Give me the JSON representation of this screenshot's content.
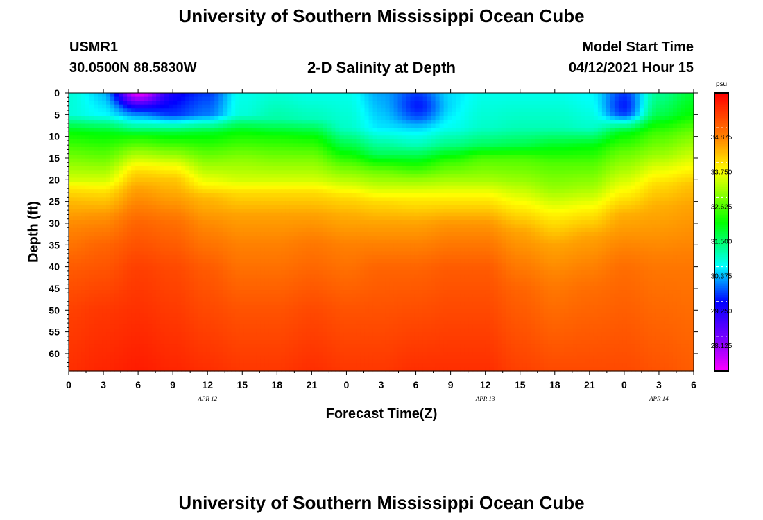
{
  "title": "University of Southern Mississippi Ocean Cube",
  "footer_title": "University of Southern Mississippi Ocean Cube",
  "station": {
    "id": "USMR1",
    "coords": "30.0500N  88.5830W"
  },
  "model": {
    "label": "Model Start Time",
    "value": "04/12/2021 Hour 15"
  },
  "chart_data": {
    "type": "heatmap",
    "title": "2-D Salinity at Depth",
    "xlabel": "Forecast Time(Z)",
    "ylabel": "Depth (ft)",
    "units": "psu",
    "x_tick_labels": [
      "0",
      "3",
      "6",
      "9",
      "12",
      "15",
      "18",
      "21",
      "0",
      "3",
      "6",
      "9",
      "12",
      "15",
      "18",
      "21",
      "0",
      "3",
      "6"
    ],
    "forecast_hours": [
      0,
      3,
      6,
      9,
      12,
      15,
      18,
      21,
      24,
      27,
      30,
      33,
      36,
      39,
      42,
      45,
      48,
      51,
      54
    ],
    "date_labels": [
      {
        "label": "APR 12",
        "hour": 12
      },
      {
        "label": "APR 13",
        "hour": 36
      },
      {
        "label": "APR 14",
        "hour": 51
      }
    ],
    "y_tick_labels": [
      "0",
      "5",
      "10",
      "15",
      "20",
      "25",
      "30",
      "35",
      "40",
      "45",
      "50",
      "55",
      "60"
    ],
    "depths": [
      0,
      5,
      10,
      15,
      20,
      25,
      30,
      35,
      40,
      45,
      50,
      55,
      60
    ],
    "xlim": [
      0,
      54
    ],
    "ylim": [
      0,
      64
    ],
    "colorbar": {
      "min": 27,
      "max": 36,
      "tick_values": [
        28.125,
        29.25,
        30.375,
        31.5,
        32.625,
        33.75,
        34.875
      ],
      "tick_labels": [
        "28.125",
        "29.250",
        "30.375",
        "31.500",
        "32.625",
        "33.750",
        "34.875"
      ],
      "stops": [
        {
          "value": 27.0,
          "color": "#ff00ff"
        },
        {
          "value": 28.0,
          "color": "#8000ff"
        },
        {
          "value": 29.25,
          "color": "#0000ff"
        },
        {
          "value": 30.4,
          "color": "#00ffff"
        },
        {
          "value": 31.8,
          "color": "#00ff00"
        },
        {
          "value": 33.5,
          "color": "#ffff00"
        },
        {
          "value": 34.6,
          "color": "#ff8000"
        },
        {
          "value": 36.0,
          "color": "#ff0000"
        }
      ]
    },
    "columns": [
      {
        "hour": 0,
        "profile": [
          [
            0,
            30.6
          ],
          [
            5,
            30.6
          ],
          [
            9,
            31.8
          ],
          [
            15,
            32.6
          ],
          [
            20,
            33.2
          ],
          [
            22,
            33.7
          ],
          [
            25,
            34.1
          ],
          [
            30,
            34.5
          ],
          [
            40,
            35.0
          ],
          [
            50,
            35.3
          ],
          [
            64,
            35.5
          ]
        ]
      },
      {
        "hour": 3,
        "profile": [
          [
            0,
            30.2
          ],
          [
            5,
            30.4
          ],
          [
            9,
            31.7
          ],
          [
            15,
            32.5
          ],
          [
            20,
            33.2
          ],
          [
            23,
            33.8
          ],
          [
            28,
            34.4
          ],
          [
            35,
            34.9
          ],
          [
            50,
            35.4
          ],
          [
            64,
            35.6
          ]
        ]
      },
      {
        "hour": 6,
        "profile": [
          [
            0,
            28.0
          ],
          [
            3,
            29.2
          ],
          [
            7,
            30.6
          ],
          [
            10,
            31.9
          ],
          [
            14,
            32.9
          ],
          [
            18,
            33.8
          ],
          [
            22,
            34.3
          ],
          [
            30,
            34.9
          ],
          [
            40,
            35.3
          ],
          [
            64,
            35.7
          ]
        ]
      },
      {
        "hour": 9,
        "profile": [
          [
            0,
            29.2
          ],
          [
            5,
            29.5
          ],
          [
            9,
            31.5
          ],
          [
            13,
            32.5
          ],
          [
            17,
            33.5
          ],
          [
            20,
            34.0
          ],
          [
            30,
            34.8
          ],
          [
            40,
            35.2
          ],
          [
            64,
            35.6
          ]
        ]
      },
      {
        "hour": 12,
        "profile": [
          [
            0,
            29.5
          ],
          [
            5,
            29.8
          ],
          [
            9,
            31.6
          ],
          [
            15,
            32.6
          ],
          [
            21,
            33.5
          ],
          [
            24,
            34.1
          ],
          [
            30,
            34.5
          ],
          [
            40,
            35.0
          ],
          [
            64,
            35.5
          ]
        ]
      },
      {
        "hour": 15,
        "profile": [
          [
            0,
            30.5
          ],
          [
            5,
            30.6
          ],
          [
            9,
            31.8
          ],
          [
            15,
            32.7
          ],
          [
            20,
            33.2
          ],
          [
            23,
            33.8
          ],
          [
            28,
            34.3
          ],
          [
            35,
            34.6
          ],
          [
            50,
            35.1
          ],
          [
            64,
            35.4
          ]
        ]
      },
      {
        "hour": 18,
        "profile": [
          [
            0,
            30.6
          ],
          [
            6,
            30.9
          ],
          [
            10,
            31.9
          ],
          [
            15,
            32.6
          ],
          [
            20,
            33.2
          ],
          [
            23,
            33.8
          ],
          [
            28,
            34.3
          ],
          [
            35,
            34.6
          ],
          [
            50,
            35.1
          ],
          [
            64,
            35.4
          ]
        ]
      },
      {
        "hour": 21,
        "profile": [
          [
            0,
            30.5
          ],
          [
            6,
            30.8
          ],
          [
            10,
            31.8
          ],
          [
            15,
            32.6
          ],
          [
            20,
            33.2
          ],
          [
            23,
            33.8
          ],
          [
            28,
            34.3
          ],
          [
            35,
            34.7
          ],
          [
            50,
            35.2
          ],
          [
            64,
            35.5
          ]
        ]
      },
      {
        "hour": 24,
        "profile": [
          [
            0,
            30.5
          ],
          [
            8,
            30.7
          ],
          [
            13,
            31.6
          ],
          [
            17,
            32.5
          ],
          [
            21,
            33.2
          ],
          [
            24,
            33.8
          ],
          [
            28,
            34.2
          ],
          [
            35,
            34.6
          ],
          [
            50,
            35.1
          ],
          [
            64,
            35.4
          ]
        ]
      },
      {
        "hour": 27,
        "profile": [
          [
            0,
            30.0
          ],
          [
            8,
            30.3
          ],
          [
            14,
            31.3
          ],
          [
            18,
            32.5
          ],
          [
            22,
            33.2
          ],
          [
            25,
            33.8
          ],
          [
            30,
            34.3
          ],
          [
            40,
            34.9
          ],
          [
            64,
            35.4
          ]
        ]
      },
      {
        "hour": 30,
        "profile": [
          [
            0,
            29.7
          ],
          [
            6,
            30.0
          ],
          [
            12,
            30.8
          ],
          [
            16,
            31.8
          ],
          [
            20,
            32.8
          ],
          [
            24,
            33.6
          ],
          [
            30,
            34.3
          ],
          [
            40,
            34.9
          ],
          [
            64,
            35.5
          ]
        ]
      },
      {
        "hour": 33,
        "profile": [
          [
            0,
            30.3
          ],
          [
            8,
            30.5
          ],
          [
            12,
            31.1
          ],
          [
            16,
            32.2
          ],
          [
            20,
            32.9
          ],
          [
            24,
            33.6
          ],
          [
            30,
            34.4
          ],
          [
            40,
            35.0
          ],
          [
            64,
            35.5
          ]
        ]
      },
      {
        "hour": 36,
        "profile": [
          [
            0,
            30.5
          ],
          [
            8,
            30.7
          ],
          [
            12,
            31.3
          ],
          [
            15,
            32.3
          ],
          [
            20,
            32.9
          ],
          [
            24,
            33.6
          ],
          [
            30,
            34.4
          ],
          [
            40,
            35.0
          ],
          [
            64,
            35.5
          ]
        ]
      },
      {
        "hour": 39,
        "profile": [
          [
            0,
            30.5
          ],
          [
            8,
            30.8
          ],
          [
            12,
            31.4
          ],
          [
            15,
            32.3
          ],
          [
            20,
            32.8
          ],
          [
            26,
            33.6
          ],
          [
            32,
            34.3
          ],
          [
            45,
            34.9
          ],
          [
            64,
            35.3
          ]
        ]
      },
      {
        "hour": 42,
        "profile": [
          [
            0,
            30.5
          ],
          [
            8,
            30.8
          ],
          [
            12,
            31.6
          ],
          [
            16,
            32.3
          ],
          [
            22,
            32.8
          ],
          [
            28,
            33.6
          ],
          [
            35,
            34.3
          ],
          [
            45,
            34.7
          ],
          [
            64,
            35.2
          ]
        ]
      },
      {
        "hour": 45,
        "profile": [
          [
            0,
            30.4
          ],
          [
            8,
            30.7
          ],
          [
            12,
            31.7
          ],
          [
            16,
            32.3
          ],
          [
            22,
            32.9
          ],
          [
            27,
            33.6
          ],
          [
            33,
            34.3
          ],
          [
            45,
            34.8
          ],
          [
            64,
            35.2
          ]
        ]
      },
      {
        "hour": 48,
        "profile": [
          [
            0,
            29.7
          ],
          [
            5,
            30.0
          ],
          [
            9,
            31.7
          ],
          [
            14,
            32.5
          ],
          [
            20,
            33.2
          ],
          [
            24,
            33.7
          ],
          [
            28,
            34.2
          ],
          [
            40,
            34.8
          ],
          [
            64,
            35.2
          ]
        ]
      },
      {
        "hour": 51,
        "profile": [
          [
            0,
            31.0
          ],
          [
            5,
            31.4
          ],
          [
            9,
            32.2
          ],
          [
            14,
            32.8
          ],
          [
            18,
            33.4
          ],
          [
            21,
            33.8
          ],
          [
            26,
            34.2
          ],
          [
            40,
            34.7
          ],
          [
            64,
            35.1
          ]
        ]
      },
      {
        "hour": 54,
        "profile": [
          [
            0,
            31.5
          ],
          [
            5,
            31.8
          ],
          [
            9,
            32.5
          ],
          [
            14,
            33.1
          ],
          [
            18,
            33.6
          ],
          [
            21,
            34.0
          ],
          [
            26,
            34.3
          ],
          [
            40,
            34.7
          ],
          [
            64,
            35.0
          ]
        ]
      }
    ]
  }
}
